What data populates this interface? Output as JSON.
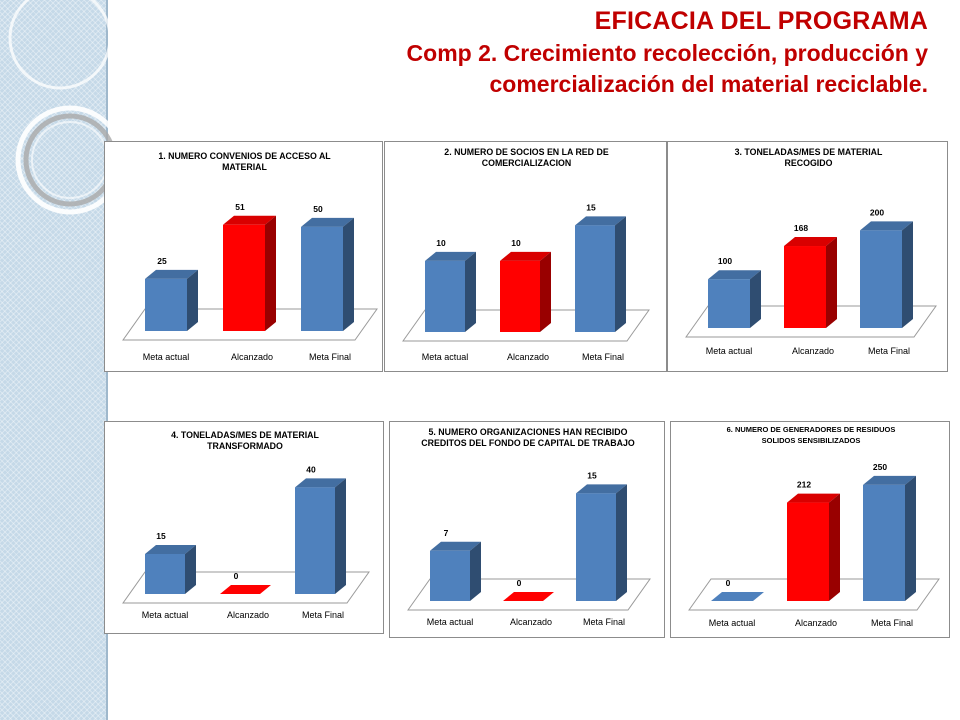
{
  "header": {
    "title": "EFICACIA DEL PROGRAMA",
    "subtitle_line1": "Comp 2. Crecimiento recolección, producción y",
    "subtitle_line2": "comercialización del material reciclable."
  },
  "colors": {
    "blue": "#4f81bd",
    "red": "#ff0000",
    "title": "#c00000",
    "band": "#c5d9e8"
  },
  "chart_data": [
    {
      "type": "bar",
      "title": [
        "1. NUMERO CONVENIOS DE ACCESO AL",
        "MATERIAL"
      ],
      "categories": [
        "Meta actual",
        "Alcanzado",
        "Meta Final"
      ],
      "values": [
        25,
        51,
        50
      ],
      "labels": [
        "25",
        "51",
        "50"
      ],
      "highlight_index": 1,
      "ylim": [
        0,
        60
      ],
      "grid": false,
      "legend": "none"
    },
    {
      "type": "bar",
      "title": [
        "2. NUMERO DE SOCIOS EN LA RED DE",
        "COMERCIALIZACION"
      ],
      "categories": [
        "Meta actual",
        "Alcanzado",
        "Meta Final"
      ],
      "values": [
        10,
        10,
        15
      ],
      "labels": [
        "10",
        "10",
        "15"
      ],
      "highlight_index": 1,
      "ylim": [
        0,
        18
      ],
      "grid": false,
      "legend": "none"
    },
    {
      "type": "bar",
      "title": [
        "3. TONELADAS/MES DE MATERIAL",
        "RECOGIDO"
      ],
      "categories": [
        "Meta actual",
        "Alcanzado",
        "Meta Final"
      ],
      "values": [
        100,
        168,
        200
      ],
      "labels": [
        "100",
        "168",
        "200"
      ],
      "highlight_index": 1,
      "ylim": [
        0,
        250
      ],
      "grid": false,
      "legend": "none"
    },
    {
      "type": "bar",
      "title": [
        "4. TONELADAS/MES DE MATERIAL",
        "TRANSFORMADO"
      ],
      "categories": [
        "Meta actual",
        "Alcanzado",
        "Meta Final"
      ],
      "values": [
        15,
        0,
        40
      ],
      "labels": [
        "15",
        "0",
        "40"
      ],
      "highlight_index": 1,
      "ylim": [
        0,
        45
      ],
      "grid": false,
      "legend": "none"
    },
    {
      "type": "bar",
      "title": [
        "5. NUMERO ORGANIZACIONES HAN RECIBIDO",
        "CREDITOS DEL FONDO DE CAPITAL DE TRABAJO"
      ],
      "categories": [
        "Meta actual",
        "Alcanzado",
        "Meta Final"
      ],
      "values": [
        7,
        0,
        15
      ],
      "labels": [
        "7",
        "0",
        "15"
      ],
      "highlight_index": 1,
      "ylim": [
        0,
        17
      ],
      "grid": false,
      "legend": "none"
    },
    {
      "type": "bar",
      "title": [
        "6. NUMERO DE GENERADORES DE RESIDUOS",
        "SOLIDOS SENSIBILIZADOS"
      ],
      "categories": [
        "Meta actual",
        "Alcanzado",
        "Meta Final"
      ],
      "values": [
        0,
        212,
        250
      ],
      "labels": [
        "0",
        "212",
        "250"
      ],
      "highlight_index": 1,
      "ylim": [
        0,
        280
      ],
      "grid": false,
      "legend": "none"
    }
  ]
}
